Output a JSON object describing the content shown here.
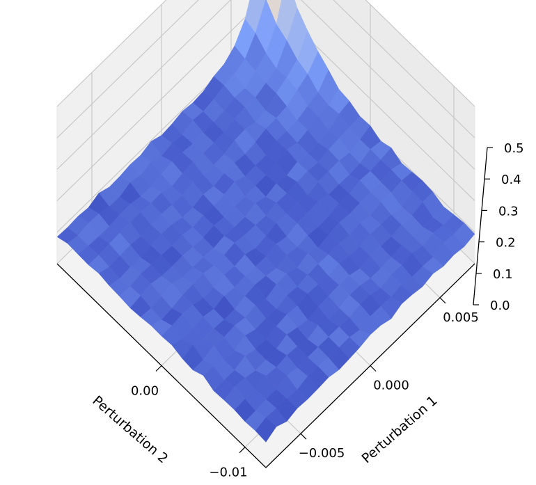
{
  "chart_data": {
    "type": "surface",
    "title": "",
    "xlabel": "Perturbation 1",
    "ylabel": "Perturbation 2",
    "zlabel": "",
    "xlim": [
      -0.0075,
      0.0075
    ],
    "ylim": [
      -0.0125,
      0.0125
    ],
    "zlim": [
      0.0,
      0.5
    ],
    "x_ticks": [
      -0.005,
      0.0,
      0.005
    ],
    "x_tick_labels": [
      "−0.005",
      "0.000",
      "0.005"
    ],
    "y_ticks": [
      -0.01,
      0.0
    ],
    "y_tick_labels": [
      "−0.01",
      "0.00"
    ],
    "z_ticks": [
      0.0,
      0.1,
      0.2,
      0.3,
      0.4,
      0.5
    ],
    "z_tick_labels": [
      "0.0",
      "0.1",
      "0.2",
      "0.3",
      "0.4",
      "0.5"
    ],
    "grid": true,
    "colormap": "coolwarm",
    "surface": {
      "description": "loss value z over a grid of Perturbation 1 (x) and Perturbation 2 (y); mostly flat near 0.09, rising sharply to about 0.5 at x = 0.0075, y = 0.0125",
      "x": [
        -0.0075,
        -0.00675,
        -0.006,
        -0.00525,
        -0.0045,
        -0.00375,
        -0.003,
        -0.00225,
        -0.0015,
        -0.00075,
        0.0,
        0.00075,
        0.0015,
        0.00225,
        0.003,
        0.00375,
        0.0045,
        0.00525,
        0.006,
        0.00675,
        0.0075
      ],
      "y": [
        -0.0125,
        -0.01125,
        -0.01,
        -0.00875,
        -0.0075,
        -0.00625,
        -0.005,
        -0.00375,
        -0.0025,
        -0.00125,
        0.0,
        0.00125,
        0.0025,
        0.00375,
        0.005,
        0.00625,
        0.0075,
        0.00875,
        0.01,
        0.01125,
        0.0125
      ],
      "base_level": 0.09,
      "peak": {
        "x": 0.0075,
        "y": 0.0125,
        "z": 0.5
      }
    }
  }
}
